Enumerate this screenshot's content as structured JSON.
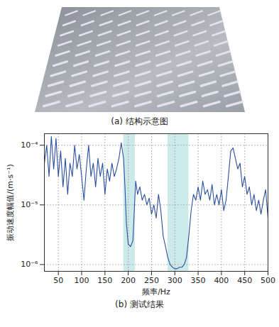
{
  "chart_data": {
    "type": "line",
    "caption_a": "(a) 结构示意图",
    "title": "(b) 测试结果",
    "x_label": "频率/Hz",
    "y_label": "振动速度幅值/(m·s⁻¹)",
    "color": "#2b4fa0",
    "band_color": "#cdeaea",
    "bands": [
      [
        190,
        215
      ],
      [
        285,
        330
      ]
    ],
    "log": "y",
    "grid": true,
    "line_style": "dotted",
    "xlim": [
      20,
      500
    ],
    "xticks": [
      50,
      100,
      150,
      200,
      250,
      300,
      350,
      400,
      450,
      500
    ],
    "ylim": [
      7.7e-07,
      0.000156
    ],
    "yticks": [
      {
        "value": 1e-06,
        "label": "10⁻⁶"
      },
      {
        "value": 1e-05,
        "label": "10⁻⁵"
      },
      {
        "value": 0.0001,
        "label": "10⁻⁴"
      }
    ],
    "x": [
      20,
      25,
      30,
      35,
      40,
      45,
      50,
      55,
      60,
      65,
      70,
      75,
      80,
      85,
      90,
      95,
      100,
      105,
      110,
      115,
      120,
      125,
      130,
      135,
      140,
      145,
      150,
      155,
      160,
      165,
      170,
      175,
      180,
      185,
      190,
      193,
      196,
      200,
      205,
      210,
      213,
      216,
      220,
      225,
      230,
      235,
      240,
      245,
      250,
      255,
      260,
      265,
      270,
      275,
      280,
      285,
      290,
      295,
      300,
      305,
      310,
      315,
      320,
      325,
      330,
      335,
      340,
      345,
      350,
      355,
      360,
      365,
      370,
      375,
      380,
      385,
      390,
      395,
      400,
      405,
      410,
      415,
      420,
      425,
      430,
      435,
      440,
      445,
      450,
      455,
      460,
      465,
      470,
      475,
      480,
      485,
      490,
      495,
      500
    ],
    "values": [
      5e-05,
      0.0001,
      3e-05,
      0.00014,
      4e-05,
      0.00013,
      3e-05,
      8e-05,
      2e-05,
      6e-05,
      1.5e-05,
      5e-05,
      3e-05,
      0.0001,
      4e-05,
      7e-05,
      3e-05,
      1.2e-05,
      4e-05,
      0.0001,
      3e-05,
      5e-05,
      2e-05,
      6e-05,
      3e-05,
      5e-05,
      1.5e-05,
      4e-05,
      2.5e-05,
      5e-05,
      3e-05,
      4e-05,
      6e-05,
      0.00011,
      6e-05,
      2e-05,
      5e-06,
      2.2e-06,
      2e-06,
      2.5e-06,
      8e-06,
      2.5e-05,
      1.5e-05,
      2e-05,
      1.2e-05,
      1.5e-05,
      1e-05,
      1.3e-05,
      7e-06,
      1e-05,
      6e-06,
      1.5e-05,
      8e-06,
      3e-06,
      2e-06,
      1.3e-06,
      1e-06,
      9e-07,
      8.5e-07,
      8.5e-07,
      9e-07,
      9e-07,
      1e-06,
      1.3e-06,
      3e-06,
      8e-06,
      1.5e-05,
      1.2e-05,
      2e-05,
      1.2e-05,
      2.5e-05,
      1.5e-05,
      1.8e-05,
      1.2e-05,
      2.2e-05,
      1e-05,
      1.5e-05,
      1e-05,
      1.8e-05,
      8e-06,
      1.2e-05,
      3e-05,
      8e-05,
      9e-05,
      6e-05,
      4e-05,
      5e-05,
      2e-05,
      3e-05,
      1.5e-05,
      2e-05,
      1e-05,
      1.5e-05,
      8e-06,
      1.2e-05,
      7e-06,
      1.2e-05,
      1.8e-05,
      6e-06
    ]
  }
}
